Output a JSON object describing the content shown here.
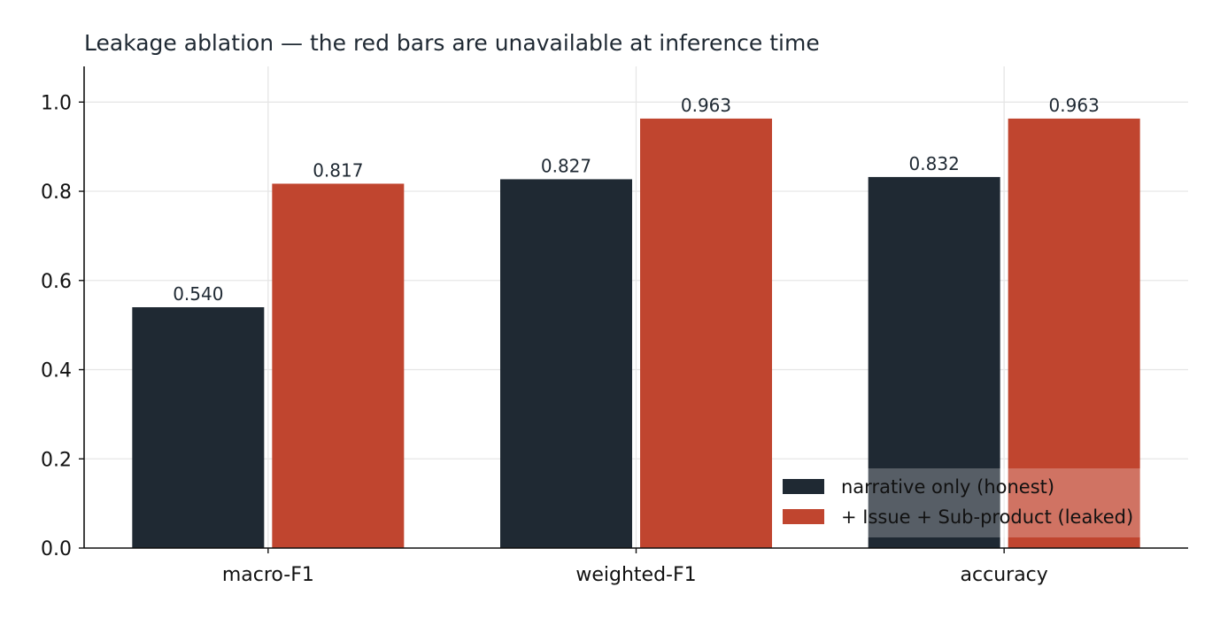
{
  "chart_data": {
    "type": "bar",
    "title": "Leakage ablation — the red bars are unavailable at inference time",
    "xlabel": "",
    "ylabel": "",
    "categories": [
      "macro-F1",
      "weighted-F1",
      "accuracy"
    ],
    "series": [
      {
        "name": "narrative only (honest)",
        "color": "#1f2933",
        "values": [
          0.54,
          0.827,
          0.832
        ],
        "labels": [
          "0.540",
          "0.827",
          "0.832"
        ]
      },
      {
        "name": "+ Issue + Sub-product (leaked)",
        "color": "#c0452f",
        "values": [
          0.817,
          0.963,
          0.963
        ],
        "labels": [
          "0.817",
          "0.963",
          "0.963"
        ]
      }
    ],
    "ylim": [
      0,
      1.08
    ],
    "yticks": [
      0.0,
      0.2,
      0.4,
      0.6,
      0.8,
      1.0
    ],
    "ytick_labels": [
      "0.0",
      "0.2",
      "0.4",
      "0.6",
      "0.8",
      "1.0"
    ],
    "grid": true,
    "legend_position": "lower-right"
  }
}
